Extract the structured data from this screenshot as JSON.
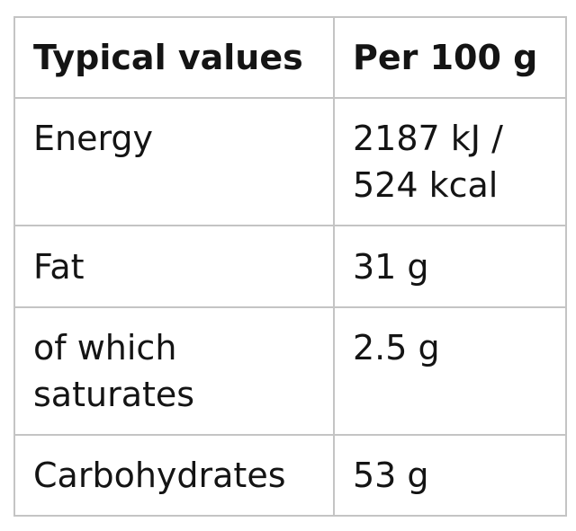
{
  "table": {
    "header": {
      "col1": "Typical values",
      "col2": "Per 100 g"
    },
    "rows": [
      {
        "label": "Energy",
        "value_line1": "2187 kJ /",
        "value_line2": "524 kcal"
      },
      {
        "label": "Fat",
        "value": "31 g"
      },
      {
        "label": "of which saturates",
        "value": "2.5 g"
      },
      {
        "label": "Carbohydrates",
        "value": "53 g"
      }
    ]
  }
}
